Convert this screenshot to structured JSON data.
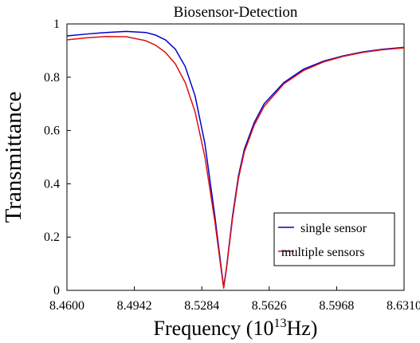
{
  "chart_data": {
    "type": "line",
    "title": "Biosensor-Detection",
    "xlabel_main": "Frequency (10",
    "xlabel_sup": "13",
    "xlabel_unit": "Hz)",
    "ylabel": "Transmittance",
    "xlim": [
      8.46,
      8.631
    ],
    "ylim": [
      0,
      1
    ],
    "x_ticks": [
      8.46,
      8.4942,
      8.5284,
      8.5626,
      8.5968,
      8.631
    ],
    "x_tick_labels": [
      "8.4600",
      "8.4942",
      "8.5284",
      "8.5626",
      "8.5968",
      "8.6310"
    ],
    "y_ticks": [
      0,
      0.2,
      0.4,
      0.6,
      0.8,
      1
    ],
    "y_tick_labels": [
      "0",
      "0.2",
      "0.4",
      "0.6",
      "0.8",
      "1"
    ],
    "grid": false,
    "legend_position": "bottom-right",
    "series": [
      {
        "name": "single sensor",
        "color": "#0000cc",
        "points": [
          [
            8.46,
            0.955
          ],
          [
            8.47,
            0.962
          ],
          [
            8.48,
            0.968
          ],
          [
            8.49,
            0.972
          ],
          [
            8.5,
            0.968
          ],
          [
            8.505,
            0.958
          ],
          [
            8.51,
            0.94
          ],
          [
            8.515,
            0.905
          ],
          [
            8.52,
            0.84
          ],
          [
            8.525,
            0.73
          ],
          [
            8.53,
            0.55
          ],
          [
            8.535,
            0.28
          ],
          [
            8.538,
            0.1
          ],
          [
            8.5395,
            0.012
          ],
          [
            8.541,
            0.09
          ],
          [
            8.544,
            0.28
          ],
          [
            8.547,
            0.43
          ],
          [
            8.55,
            0.53
          ],
          [
            8.555,
            0.63
          ],
          [
            8.56,
            0.7
          ],
          [
            8.57,
            0.78
          ],
          [
            8.58,
            0.83
          ],
          [
            8.59,
            0.86
          ],
          [
            8.6,
            0.88
          ],
          [
            8.61,
            0.895
          ],
          [
            8.62,
            0.905
          ],
          [
            8.631,
            0.912
          ]
        ]
      },
      {
        "name": "multiple sensors",
        "color": "#dd1111",
        "points": [
          [
            8.46,
            0.94
          ],
          [
            8.47,
            0.948
          ],
          [
            8.48,
            0.953
          ],
          [
            8.49,
            0.952
          ],
          [
            8.5,
            0.937
          ],
          [
            8.505,
            0.92
          ],
          [
            8.51,
            0.893
          ],
          [
            8.515,
            0.85
          ],
          [
            8.52,
            0.78
          ],
          [
            8.525,
            0.67
          ],
          [
            8.53,
            0.5
          ],
          [
            8.535,
            0.26
          ],
          [
            8.538,
            0.09
          ],
          [
            8.5395,
            0.008
          ],
          [
            8.541,
            0.085
          ],
          [
            8.544,
            0.27
          ],
          [
            8.547,
            0.42
          ],
          [
            8.55,
            0.52
          ],
          [
            8.555,
            0.62
          ],
          [
            8.56,
            0.69
          ],
          [
            8.57,
            0.775
          ],
          [
            8.58,
            0.825
          ],
          [
            8.59,
            0.857
          ],
          [
            8.6,
            0.878
          ],
          [
            8.61,
            0.893
          ],
          [
            8.62,
            0.903
          ],
          [
            8.631,
            0.91
          ]
        ]
      }
    ]
  }
}
